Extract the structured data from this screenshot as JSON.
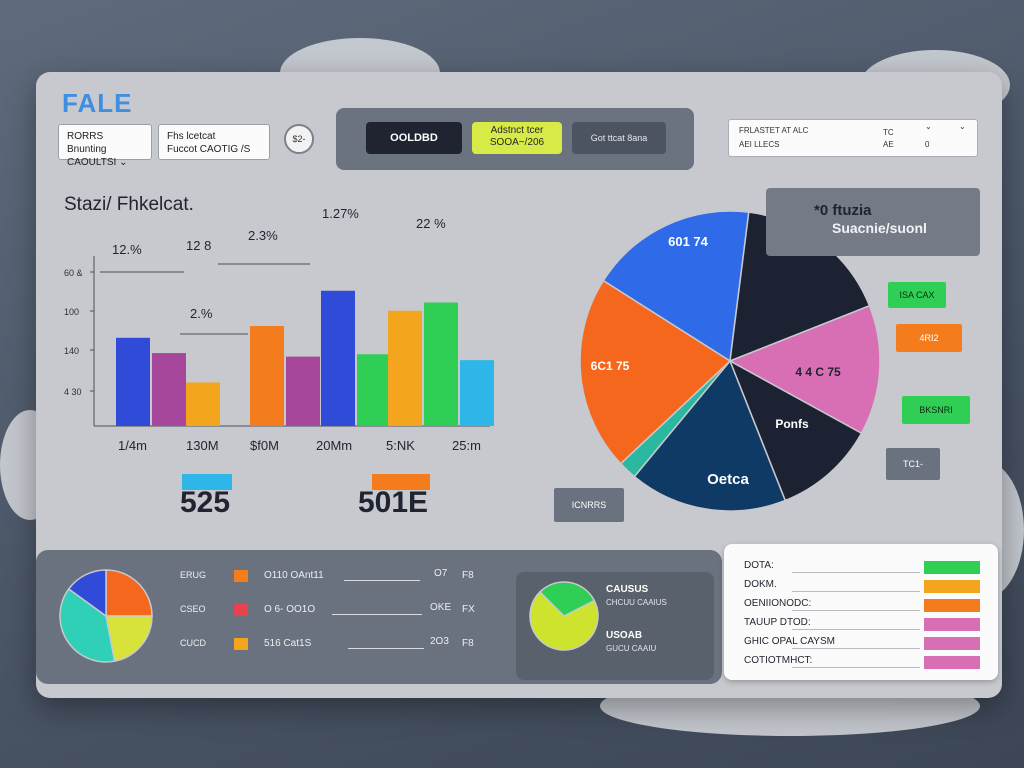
{
  "brand": "FALE",
  "toolbar": {
    "select1": {
      "line1": "RORRS Bnunting",
      "line2": "CAOULTSI"
    },
    "select2": {
      "line1": "Fhs lcetcat",
      "line2": "Fuccot CAOTIG /S"
    },
    "round_button": "$2-",
    "tabs": [
      {
        "label": "OOLDBD",
        "active": true
      },
      {
        "label": "Adstnct tcer\nSOOA~/206",
        "active": false
      },
      {
        "label": "Got ttcat 8ana",
        "active": false
      }
    ],
    "filter": {
      "line1": "FRLASTET AT ALC",
      "line2": "AEI LLECS",
      "col2a": "TC",
      "col2b": "AE",
      "col3": "0"
    }
  },
  "bar_chart_title": "Stazi/ Fhkelcat.",
  "chart_data": [
    {
      "type": "bar",
      "title": "Stazi/ Fhkelcat.",
      "categories": [
        "1/4m",
        "130M",
        "$f0M",
        "20Mm",
        "5:NK",
        "25:m"
      ],
      "y_ticks": [
        "60 &",
        "100",
        "140",
        "4 30"
      ],
      "series": [
        {
          "color": "#2f4bd8",
          "values": [
            0.75,
            null,
            null,
            null,
            null,
            null
          ]
        },
        {
          "color": "#a7479b",
          "values": [
            0.62,
            null,
            null,
            null,
            null,
            null
          ]
        },
        {
          "color": "#f3a51d",
          "values": [
            null,
            0.37,
            null,
            null,
            null,
            null
          ]
        },
        {
          "color": "#f57c1c",
          "values": [
            null,
            null,
            0.85,
            null,
            null,
            null
          ]
        },
        {
          "color": "#a7479b",
          "values": [
            null,
            null,
            0.59,
            null,
            null,
            null
          ]
        },
        {
          "color": "#2f4bd8",
          "values": [
            null,
            null,
            null,
            1.15,
            null,
            null
          ]
        },
        {
          "color": "#2fcf55",
          "values": [
            null,
            null,
            null,
            0.61,
            null,
            null
          ]
        },
        {
          "color": "#f3a51d",
          "values": [
            null,
            null,
            null,
            null,
            0.98,
            null
          ]
        },
        {
          "color": "#2fcf55",
          "values": [
            null,
            null,
            null,
            null,
            1.05,
            null
          ]
        },
        {
          "color": "#2fb6e8",
          "values": [
            null,
            null,
            null,
            null,
            null,
            0.56
          ]
        }
      ],
      "annotations": [
        "12.%",
        "12 8",
        "2.3%",
        "1.27%",
        "22 %",
        "2.%"
      ]
    },
    {
      "type": "pie",
      "slices": [
        {
          "label": "601 74",
          "value": 18,
          "color": "#2f6be8"
        },
        {
          "label": "",
          "value": 17,
          "color": "#1d2233"
        },
        {
          "label": "4 4 C 75",
          "value": 14,
          "color": "#d86fb5"
        },
        {
          "label": "Ponfs",
          "value": 11,
          "color": "#1d2233"
        },
        {
          "label": "Oetca",
          "value": 17,
          "color": "#0f3a66"
        },
        {
          "label": "",
          "value": 2,
          "color": "#2bb8a0"
        },
        {
          "label": "6C1 75",
          "value": 21,
          "color": "#f5671d"
        }
      ]
    },
    {
      "type": "pie",
      "slices": [
        {
          "value": 25,
          "color": "#f5671d"
        },
        {
          "value": 22,
          "color": "#d8e33a"
        },
        {
          "value": 38,
          "color": "#2fd0b7"
        },
        {
          "value": 15,
          "color": "#2f4bd8"
        }
      ]
    },
    {
      "type": "pie",
      "slices": [
        {
          "value": 70,
          "color": "#cde32e"
        },
        {
          "value": 30,
          "color": "#2fcf55"
        }
      ]
    }
  ],
  "kpis": [
    {
      "value": "525",
      "color": "#2fb6e8"
    },
    {
      "value": "501E",
      "color": "#f57c1c"
    }
  ],
  "pie_header": {
    "line1": "*0 ftuzia",
    "line2": "Suacnie/suonl"
  },
  "pie_legend": [
    {
      "label": "ISA CAX",
      "bg": "#2fcf55",
      "fg": "#0c2a13"
    },
    {
      "label": "4RI2",
      "bg": "#f57c1c",
      "fg": "#ffffff"
    },
    {
      "label": "BKSNRI",
      "bg": "#2fcf55",
      "fg": "#0c2a13"
    },
    {
      "label": "TC1-",
      "bg": "#6a727f",
      "fg": "#ffffff"
    },
    {
      "label": "ICNRRS",
      "bg": "#6a727f",
      "fg": "#ffffff"
    }
  ],
  "bottom_left_rows": [
    {
      "tag": "ERUG",
      "swatch": "#f57c1c",
      "name": "O110 OAnt11",
      "value": "O7",
      "suffix": "F8"
    },
    {
      "tag": "CSEO",
      "swatch": "#e8424f",
      "name": "O 6- OO1O",
      "value": "OKE",
      "suffix": "FX"
    },
    {
      "tag": "CUCD",
      "swatch": "#f3a51d",
      "name": "516 Cat1S",
      "value": "2O3",
      "suffix": "F8"
    }
  ],
  "donut_labels": {
    "line1": "CAUSUS",
    "line2": "CHCUU CAAIUS",
    "line3": "USOAB",
    "line4": "GUCU CAAIU"
  },
  "bottom_right_rows": [
    {
      "label": "DOTA:",
      "color": "#2fcf55"
    },
    {
      "label": "DOKM.",
      "color": "#f3a51d"
    },
    {
      "label": "OENIIONODC:",
      "color": "#f57c1c"
    },
    {
      "label": "TAUUP DTOD:",
      "color": "#d86fb5"
    },
    {
      "label": "GHIC OPAL CAYSM",
      "color": "#d86fb5"
    },
    {
      "label": "COTIOTMHCT:",
      "color": "#d86fb5"
    }
  ]
}
